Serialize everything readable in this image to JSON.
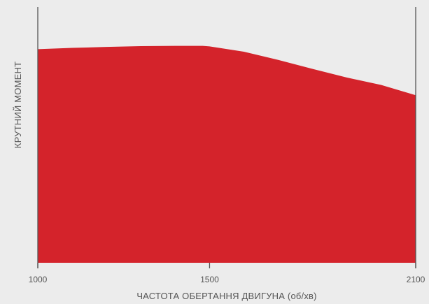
{
  "chart_data": {
    "type": "area",
    "title": "",
    "xlabel": "ЧАСТОТА ОБЕРТАННЯ ДВИГУНА (об/хв)",
    "ylabel": "КРУТНИЙ МОМЕНТ",
    "xlim": [
      1000,
      2100
    ],
    "ylim": [
      0,
      100
    ],
    "x_ticks": [
      "1000",
      "1500",
      "2100"
    ],
    "y_ticks": [],
    "grid": false,
    "legend": "none",
    "colors": {
      "fill": "#d4232b",
      "axis": "#555555",
      "background": "#ececec"
    },
    "series": [
      {
        "x": [
          1000,
          1100,
          1200,
          1300,
          1400,
          1480,
          1500,
          1600,
          1700,
          1800,
          1900,
          2000,
          2100
        ],
        "values": [
          83.5,
          84.0,
          84.4,
          84.7,
          84.8,
          84.8,
          84.6,
          82.5,
          79.3,
          75.8,
          72.4,
          69.5,
          65.5
        ]
      }
    ]
  }
}
